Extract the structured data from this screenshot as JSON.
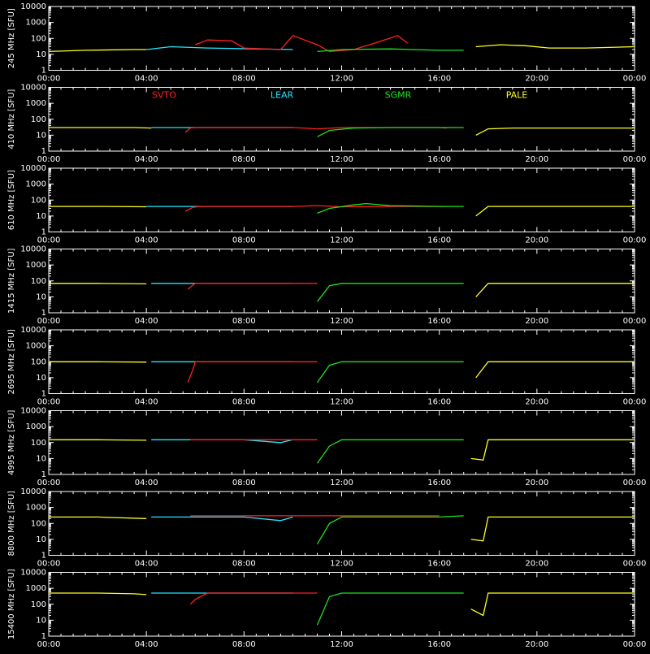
{
  "chart_data": {
    "type": "line",
    "y_scale": "log",
    "ylim": [
      1,
      10000
    ],
    "ylabel": "[SFU]",
    "xlim": [
      "00:00",
      "24:00"
    ],
    "x_ticks": [
      "00:00",
      "04:00",
      "08:00",
      "12:00",
      "16:00",
      "20:00",
      "00:00"
    ],
    "y_ticks": [
      "1",
      "10",
      "100",
      "1000",
      "10000"
    ],
    "legend": {
      "placement": "top panel 2",
      "entries": [
        {
          "name": "SVTO",
          "color": "#ff2020"
        },
        {
          "name": "LEAR",
          "color": "#20e8ff"
        },
        {
          "name": "SGMR",
          "color": "#20e020"
        },
        {
          "name": "PALE",
          "color": "#ffff20"
        }
      ]
    },
    "panels": [
      {
        "frequency_label": "245 MHz",
        "series": [
          {
            "name": "PALE",
            "color": "#ffff20",
            "x": [
              0,
              1.5,
              3.5,
              4.0
            ],
            "y": [
              15,
              18,
              20,
              20
            ]
          },
          {
            "name": "LEAR",
            "color": "#20e8ff",
            "x": [
              4.0,
              5.0,
              6.5,
              8.5,
              10.0
            ],
            "y": [
              20,
              30,
              25,
              22,
              20
            ]
          },
          {
            "name": "SVTO",
            "color": "#ff2020",
            "x": [
              6.0,
              6.5,
              7.5,
              8.0,
              9.5,
              10.0,
              11.0,
              11.5,
              12.5,
              13.5,
              14.3,
              14.7
            ],
            "y": [
              40,
              80,
              70,
              25,
              20,
              150,
              40,
              15,
              20,
              60,
              150,
              50
            ]
          },
          {
            "name": "SGMR",
            "color": "#20e020",
            "x": [
              11.0,
              12.0,
              14.0,
              16.0,
              17.0
            ],
            "y": [
              15,
              20,
              22,
              18,
              18
            ]
          },
          {
            "name": "PALE",
            "color": "#ffff20",
            "x": [
              17.5,
              18.5,
              19.5,
              20.5,
              22.0,
              24.0
            ],
            "y": [
              30,
              40,
              35,
              25,
              25,
              30
            ]
          }
        ]
      },
      {
        "frequency_label": "410 MHz",
        "series": [
          {
            "name": "PALE",
            "color": "#ffff20",
            "x": [
              0,
              1.5,
              3.5,
              4.2
            ],
            "y": [
              30,
              30,
              30,
              28
            ]
          },
          {
            "name": "LEAR",
            "color": "#20e8ff",
            "x": [
              4.2,
              6.0,
              8.0,
              10.0
            ],
            "y": [
              30,
              30,
              30,
              30
            ]
          },
          {
            "name": "SVTO",
            "color": "#ff2020",
            "x": [
              5.6,
              5.8,
              6.0,
              10.0,
              11.0,
              12.0,
              16.0,
              16.3
            ],
            "y": [
              15,
              28,
              30,
              30,
              25,
              30,
              30,
              28
            ]
          },
          {
            "name": "SGMR",
            "color": "#20e020",
            "x": [
              11.0,
              11.5,
              12.5,
              14.0,
              16.0,
              17.0
            ],
            "y": [
              8,
              20,
              28,
              30,
              30,
              30
            ]
          },
          {
            "name": "PALE",
            "color": "#ffff20",
            "x": [
              17.5,
              18.0,
              19.0,
              21.0,
              23.0,
              24.0
            ],
            "y": [
              10,
              25,
              28,
              28,
              28,
              28
            ]
          }
        ]
      },
      {
        "frequency_label": "610 MHz",
        "series": [
          {
            "name": "PALE",
            "color": "#ffff20",
            "x": [
              0,
              2.0,
              4.0
            ],
            "y": [
              40,
              40,
              38
            ]
          },
          {
            "name": "LEAR",
            "color": "#20e8ff",
            "x": [
              4.0,
              6.0,
              8.0,
              10.0
            ],
            "y": [
              40,
              40,
              40,
              40
            ]
          },
          {
            "name": "SVTO",
            "color": "#ff2020",
            "x": [
              5.6,
              5.9,
              6.2,
              10.0,
              11.0,
              12.0,
              14.0,
              16.3
            ],
            "y": [
              20,
              35,
              40,
              40,
              45,
              38,
              40,
              40
            ]
          },
          {
            "name": "SGMR",
            "color": "#20e020",
            "x": [
              11.0,
              11.5,
              12.5,
              13.0,
              14.0,
              16.0,
              17.0
            ],
            "y": [
              15,
              30,
              50,
              60,
              45,
              40,
              40
            ]
          },
          {
            "name": "PALE",
            "color": "#ffff20",
            "x": [
              17.5,
              18.0,
              20.0,
              22.0,
              24.0
            ],
            "y": [
              10,
              40,
              40,
              40,
              40
            ]
          }
        ]
      },
      {
        "frequency_label": "1415 MHz",
        "series": [
          {
            "name": "PALE",
            "color": "#ffff20",
            "x": [
              0,
              2.0,
              4.0
            ],
            "y": [
              70,
              70,
              65
            ]
          },
          {
            "name": "LEAR",
            "color": "#20e8ff",
            "x": [
              4.2,
              6.0,
              8.0,
              10.0
            ],
            "y": [
              70,
              70,
              70,
              70
            ]
          },
          {
            "name": "SVTO",
            "color": "#ff2020",
            "x": [
              5.7,
              6.0,
              10.0,
              11.0
            ],
            "y": [
              30,
              70,
              70,
              70
            ]
          },
          {
            "name": "SGMR",
            "color": "#20e020",
            "x": [
              11.0,
              11.5,
              12.0,
              14.0,
              16.0,
              17.0
            ],
            "y": [
              5,
              50,
              70,
              70,
              70,
              70
            ]
          },
          {
            "name": "PALE",
            "color": "#ffff20",
            "x": [
              17.5,
              18.0,
              20.0,
              22.0,
              24.0
            ],
            "y": [
              10,
              70,
              70,
              70,
              70
            ]
          }
        ]
      },
      {
        "frequency_label": "2695 MHz",
        "series": [
          {
            "name": "PALE",
            "color": "#ffff20",
            "x": [
              0,
              2.0,
              4.0
            ],
            "y": [
              100,
              100,
              95
            ]
          },
          {
            "name": "LEAR",
            "color": "#20e8ff",
            "x": [
              4.2,
              6.0,
              8.0,
              10.0
            ],
            "y": [
              100,
              100,
              100,
              100
            ]
          },
          {
            "name": "SVTO",
            "color": "#ff2020",
            "x": [
              5.7,
              5.9,
              6.0,
              10.0,
              11.0
            ],
            "y": [
              5,
              30,
              100,
              100,
              100
            ]
          },
          {
            "name": "SGMR",
            "color": "#20e020",
            "x": [
              11.0,
              11.5,
              12.0,
              14.0,
              16.0,
              17.0
            ],
            "y": [
              5,
              60,
              100,
              100,
              100,
              100
            ]
          },
          {
            "name": "PALE",
            "color": "#ffff20",
            "x": [
              17.5,
              18.0,
              20.0,
              22.0,
              24.0
            ],
            "y": [
              10,
              100,
              100,
              100,
              100
            ]
          }
        ]
      },
      {
        "frequency_label": "4995 MHz",
        "series": [
          {
            "name": "PALE",
            "color": "#ffff20",
            "x": [
              0,
              2.0,
              4.0
            ],
            "y": [
              150,
              150,
              140
            ]
          },
          {
            "name": "LEAR",
            "color": "#20e8ff",
            "x": [
              4.2,
              6.0,
              8.0,
              9.5,
              10.0
            ],
            "y": [
              150,
              150,
              150,
              100,
              150
            ]
          },
          {
            "name": "SVTO",
            "color": "#ff2020",
            "x": [
              5.8,
              6.0,
              10.0,
              11.0
            ],
            "y": [
              150,
              150,
              150,
              150
            ]
          },
          {
            "name": "SGMR",
            "color": "#20e020",
            "x": [
              11.0,
              11.5,
              12.0,
              14.0,
              16.0,
              17.0
            ],
            "y": [
              5,
              60,
              150,
              150,
              150,
              150
            ]
          },
          {
            "name": "PALE",
            "color": "#ffff20",
            "x": [
              17.3,
              17.8,
              18.0,
              20.0,
              22.0,
              24.0
            ],
            "y": [
              10,
              8,
              150,
              150,
              150,
              150
            ]
          }
        ]
      },
      {
        "frequency_label": "8800 MHz",
        "series": [
          {
            "name": "PALE",
            "color": "#ffff20",
            "x": [
              0,
              2.0,
              4.0
            ],
            "y": [
              250,
              250,
              200
            ]
          },
          {
            "name": "LEAR",
            "color": "#20e8ff",
            "x": [
              4.2,
              6.0,
              8.0,
              9.5,
              10.0
            ],
            "y": [
              250,
              250,
              250,
              150,
              250
            ]
          },
          {
            "name": "SVTO",
            "color": "#ff2020",
            "x": [
              5.8,
              6.0,
              10.0,
              11.0,
              14.0,
              16.0
            ],
            "y": [
              300,
              300,
              300,
              300,
              300,
              300
            ]
          },
          {
            "name": "SGMR",
            "color": "#20e020",
            "x": [
              11.0,
              11.5,
              12.0,
              14.0,
              16.0,
              17.0
            ],
            "y": [
              5,
              100,
              250,
              250,
              250,
              300
            ]
          },
          {
            "name": "PALE",
            "color": "#ffff20",
            "x": [
              17.3,
              17.8,
              18.0,
              20.0,
              22.0,
              24.0
            ],
            "y": [
              10,
              8,
              250,
              250,
              250,
              250
            ]
          }
        ]
      },
      {
        "frequency_label": "15400 MHz",
        "series": [
          {
            "name": "PALE",
            "color": "#ffff20",
            "x": [
              0,
              2.0,
              3.5,
              4.0
            ],
            "y": [
              500,
              500,
              450,
              400
            ]
          },
          {
            "name": "LEAR",
            "color": "#20e8ff",
            "x": [
              4.2,
              6.0,
              8.0,
              10.0
            ],
            "y": [
              500,
              500,
              500,
              500
            ]
          },
          {
            "name": "SVTO",
            "color": "#ff2020",
            "x": [
              5.8,
              6.0,
              6.5,
              10.0,
              11.0
            ],
            "y": [
              100,
              200,
              500,
              500,
              500
            ]
          },
          {
            "name": "SGMR",
            "color": "#20e020",
            "x": [
              11.0,
              11.5,
              12.0,
              14.0,
              16.0,
              17.0
            ],
            "y": [
              5,
              300,
              500,
              500,
              500,
              500
            ]
          },
          {
            "name": "PALE",
            "color": "#ffff20",
            "x": [
              17.3,
              17.8,
              18.0,
              20.0,
              22.0,
              24.0
            ],
            "y": [
              50,
              20,
              500,
              500,
              500,
              500
            ]
          }
        ]
      }
    ]
  }
}
